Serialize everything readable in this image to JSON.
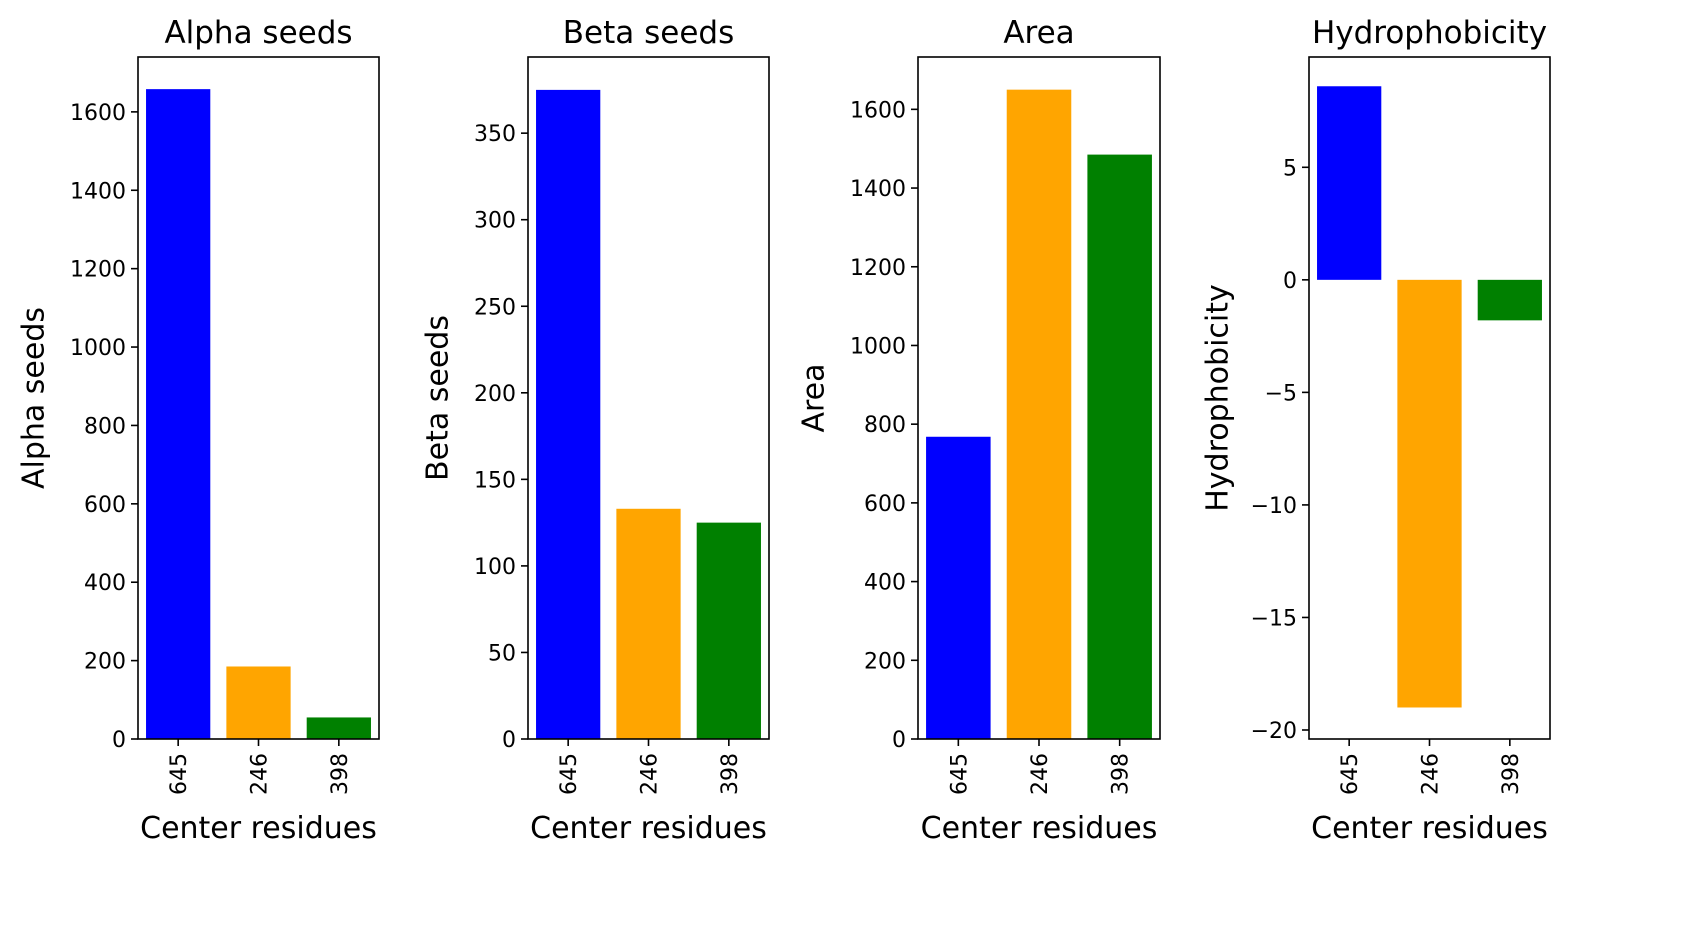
{
  "chart_data": [
    {
      "type": "bar",
      "title": "Alpha seeds",
      "xlabel": "Center residues",
      "ylabel": "Alpha seeds",
      "categories": [
        "645",
        "246",
        "398"
      ],
      "values": [
        1658,
        185,
        55
      ],
      "colors": [
        "#0000ff",
        "#ffa500",
        "#008000"
      ],
      "ylim": [
        0,
        1740
      ],
      "yticks": [
        0,
        200,
        400,
        600,
        800,
        1000,
        1200,
        1400,
        1600
      ],
      "ytick_labels": [
        "0",
        "200",
        "400",
        "600",
        "800",
        "1000",
        "1200",
        "1400",
        "1600"
      ],
      "grid": false
    },
    {
      "type": "bar",
      "title": "Beta seeds",
      "xlabel": "Center residues",
      "ylabel": "Beta seeds",
      "categories": [
        "645",
        "246",
        "398"
      ],
      "values": [
        375,
        133,
        125
      ],
      "colors": [
        "#0000ff",
        "#ffa500",
        "#008000"
      ],
      "ylim": [
        0,
        394
      ],
      "yticks": [
        0,
        50,
        100,
        150,
        200,
        250,
        300,
        350
      ],
      "ytick_labels": [
        "0",
        "50",
        "100",
        "150",
        "200",
        "250",
        "300",
        "350"
      ],
      "grid": false
    },
    {
      "type": "bar",
      "title": "Area",
      "xlabel": "Center residues",
      "ylabel": "Area",
      "categories": [
        "645",
        "246",
        "398"
      ],
      "values": [
        768,
        1650,
        1485
      ],
      "colors": [
        "#0000ff",
        "#ffa500",
        "#008000"
      ],
      "ylim": [
        0,
        1733
      ],
      "yticks": [
        0,
        200,
        400,
        600,
        800,
        1000,
        1200,
        1400,
        1600
      ],
      "ytick_labels": [
        "0",
        "200",
        "400",
        "600",
        "800",
        "1000",
        "1200",
        "1400",
        "1600"
      ],
      "grid": false
    },
    {
      "type": "bar",
      "title": "Hydrophobicity",
      "xlabel": "Center residues",
      "ylabel": "Hydrophobicity",
      "categories": [
        "645",
        "246",
        "398"
      ],
      "values": [
        8.6,
        -19.0,
        -1.8
      ],
      "colors": [
        "#0000ff",
        "#ffa500",
        "#008000"
      ],
      "ylim": [
        -20.4,
        9.9
      ],
      "yticks": [
        -20,
        -15,
        -10,
        -5,
        0,
        5
      ],
      "ytick_labels": [
        "−20",
        "−15",
        "−10",
        "−5",
        "0",
        "5"
      ],
      "grid": false
    }
  ]
}
